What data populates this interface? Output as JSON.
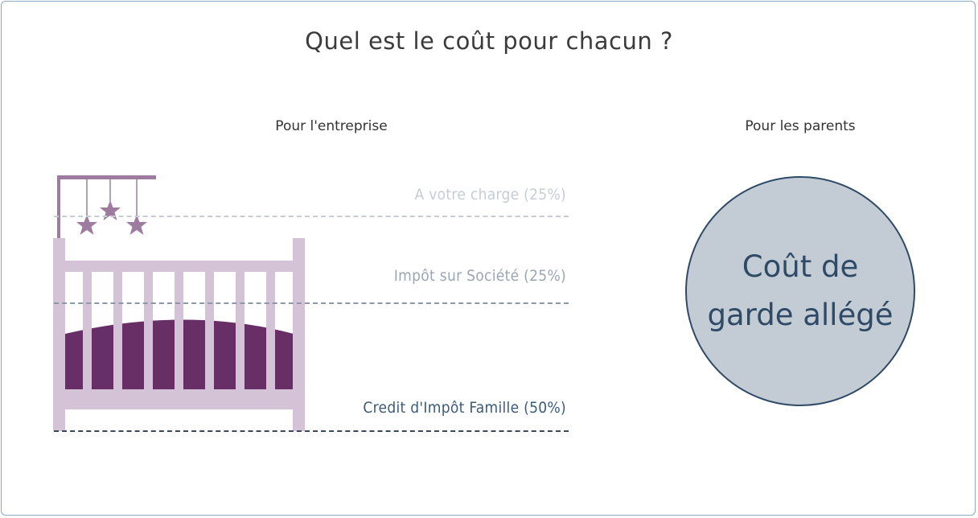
{
  "title": "Quel est le coût pour chacun ?",
  "columns": {
    "company": "Pour l'entreprise",
    "parents": "Pour les parents"
  },
  "tiers": [
    {
      "label": "A votre charge (25%)",
      "share_percent": 25,
      "color": "#c6ccd4"
    },
    {
      "label": "Impôt sur Société (25%)",
      "share_percent": 25,
      "color": "#9aa6b4"
    },
    {
      "label": "Credit d'Impôt Famille (50%)",
      "share_percent": 50,
      "color": "#3a5a7a"
    }
  ],
  "parents_box": {
    "line1": "Coût de",
    "line2": "garde allégé",
    "fill": "#c3ccd4",
    "border": "#2f4a66"
  },
  "illustration": {
    "icon": "crib-icon",
    "frame_color": "#d4c2d6",
    "mattress_color": "#682e66",
    "mobile_color": "#9e7ca0"
  }
}
